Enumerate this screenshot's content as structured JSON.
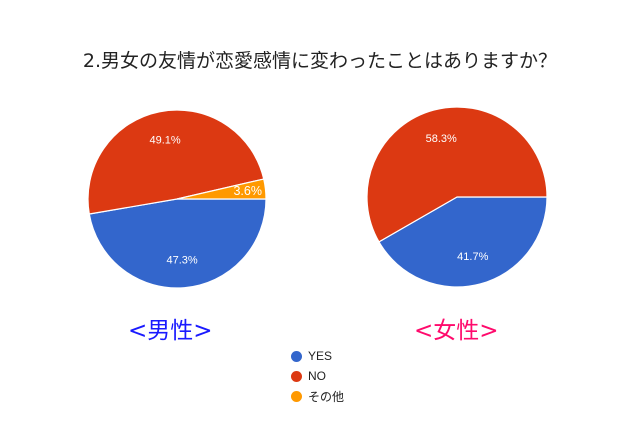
{
  "title": "2.男女の友情が恋愛感情に変わったことはありますか？",
  "groups": {
    "male": {
      "label": "<男性>",
      "color": "#1a1aff"
    },
    "female": {
      "label": "<女性>",
      "color": "#ff0a6c"
    }
  },
  "legend": [
    {
      "label": "YES",
      "color": "#3366cc"
    },
    {
      "label": "NO",
      "color": "#dc3912"
    },
    {
      "label": "その他",
      "color": "#ff9900"
    }
  ],
  "chart_data": [
    {
      "type": "pie",
      "title": "<男性>",
      "categories": [
        "YES",
        "NO",
        "その他"
      ],
      "values": [
        47.3,
        49.1,
        3.6
      ],
      "labels": [
        "47.3%",
        "49.1%",
        "3.6%"
      ],
      "colors": [
        "#3366cc",
        "#dc3912",
        "#ff9900"
      ]
    },
    {
      "type": "pie",
      "title": "<女性>",
      "categories": [
        "YES",
        "NO",
        "その他"
      ],
      "values": [
        41.7,
        58.3,
        0
      ],
      "labels": [
        "41.7%",
        "58.3%",
        ""
      ],
      "colors": [
        "#3366cc",
        "#dc3912",
        "#ff9900"
      ]
    }
  ]
}
